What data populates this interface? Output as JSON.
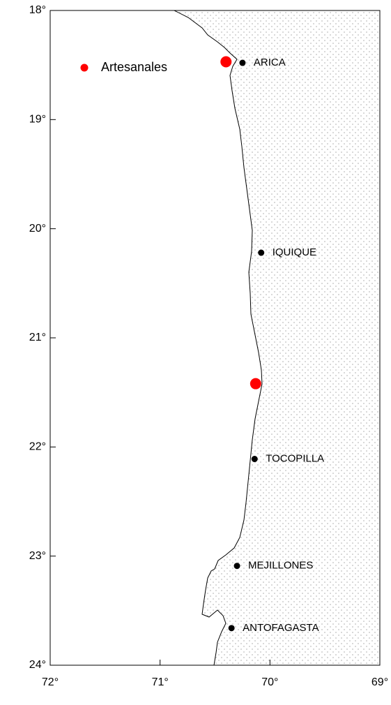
{
  "chart_data": {
    "type": "map",
    "xlim": [
      72,
      69
    ],
    "ylim": [
      18,
      24
    ],
    "xticks": [
      {
        "value": 72,
        "label": "72°"
      },
      {
        "value": 71,
        "label": "71°"
      },
      {
        "value": 70,
        "label": "70°"
      },
      {
        "value": 69,
        "label": "69°"
      }
    ],
    "yticks": [
      {
        "value": 18,
        "label": "18°"
      },
      {
        "value": 19,
        "label": "19°"
      },
      {
        "value": 20,
        "label": "20°"
      },
      {
        "value": 21,
        "label": "21°"
      },
      {
        "value": 22,
        "label": "22°"
      },
      {
        "value": 23,
        "label": "23°"
      },
      {
        "value": 24,
        "label": "24°"
      }
    ],
    "legend": "upper left",
    "series": [
      {
        "name": "Artesanales",
        "color": "#ff0000",
        "x": [
          70.4,
          70.13
        ],
        "y": [
          18.47,
          21.42
        ]
      }
    ],
    "places": {
      "color": "#000000",
      "names": [
        "ARICA",
        "IQUIQUE",
        "TOCOPILLA",
        "MEJILLONES",
        "ANTOFAGASTA"
      ],
      "x": [
        70.25,
        70.08,
        70.14,
        70.3,
        70.35
      ],
      "y": [
        18.48,
        20.22,
        22.11,
        23.09,
        23.66
      ]
    }
  }
}
